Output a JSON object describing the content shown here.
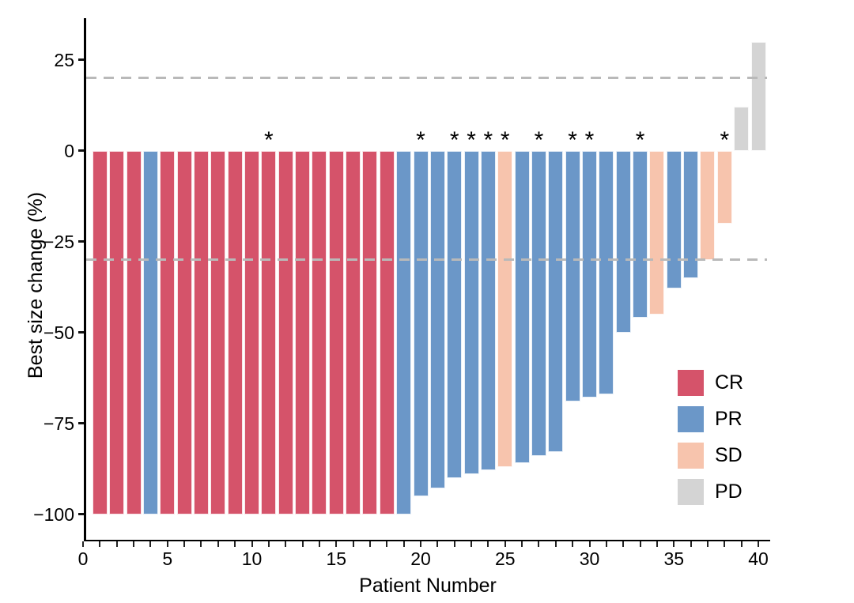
{
  "chart_data": {
    "type": "bar",
    "subtype": "waterfall",
    "title": "",
    "xlabel": "Patient Number",
    "ylabel": "Best size change (%)",
    "x_tick_labels": [
      "0",
      "5",
      "10",
      "15",
      "20",
      "25",
      "30",
      "35",
      "40"
    ],
    "x_major_ticks": [
      0,
      5,
      10,
      15,
      20,
      25,
      30,
      35,
      40
    ],
    "x_minor_tick_every": 1,
    "x_range": [
      0,
      40.7
    ],
    "y_tick_labels": [
      "25",
      "0",
      "−25",
      "−50",
      "−75",
      "−100"
    ],
    "y_ticks": [
      25,
      0,
      -25,
      -50,
      -75,
      -100
    ],
    "y_range": [
      -107,
      36.5
    ],
    "reference_lines": [
      20,
      -30
    ],
    "reference_line_color": "#b9b9b9",
    "grid": false,
    "legend_position": "inside-right",
    "legend": [
      {
        "label": "CR",
        "color": "#d5536a"
      },
      {
        "label": "PR",
        "color": "#6b97c8"
      },
      {
        "label": "SD",
        "color": "#f7c4ad"
      },
      {
        "label": "PD",
        "color": "#d4d4d4"
      }
    ],
    "categories": [
      1,
      2,
      3,
      4,
      5,
      6,
      7,
      8,
      9,
      10,
      11,
      12,
      13,
      14,
      15,
      16,
      17,
      18,
      19,
      20,
      21,
      22,
      23,
      24,
      25,
      26,
      27,
      28,
      29,
      30,
      31,
      32,
      33,
      34,
      35,
      36,
      37,
      38,
      39,
      40
    ],
    "values": [
      -100,
      -100,
      -100,
      -100,
      -100,
      -100,
      -100,
      -100,
      -100,
      -100,
      -100,
      -100,
      -100,
      -100,
      -100,
      -100,
      -100,
      -100,
      -100,
      -95,
      -93,
      -90,
      -89,
      -88,
      -87,
      -86,
      -84,
      -83,
      -69,
      -68,
      -67,
      -50,
      -46,
      -45,
      -38,
      -35,
      -30,
      -20,
      12,
      30
    ],
    "responses": [
      "CR",
      "CR",
      "CR",
      "PR",
      "CR",
      "CR",
      "CR",
      "CR",
      "CR",
      "CR",
      "CR",
      "CR",
      "CR",
      "CR",
      "CR",
      "CR",
      "CR",
      "CR",
      "PR",
      "PR",
      "PR",
      "PR",
      "PR",
      "PR",
      "SD",
      "PR",
      "PR",
      "PR",
      "PR",
      "PR",
      "PR",
      "PR",
      "PR",
      "SD",
      "PR",
      "PR",
      "SD",
      "SD",
      "PD",
      "PD"
    ],
    "starred_patients": [
      11,
      20,
      22,
      23,
      24,
      25,
      27,
      29,
      30,
      33,
      38
    ],
    "star_symbol": "*"
  }
}
